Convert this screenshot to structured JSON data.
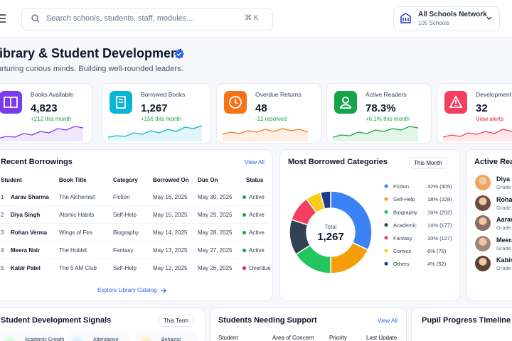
{
  "header": {
    "search_placeholder": "Search schools, students, staff, modules...",
    "search_shortcut": "⌘ K",
    "network": "All Schools Network",
    "network_sub": "105 Schools"
  },
  "page": {
    "title": "Library & Student Development",
    "subtitle": "Nurturing curious minds. Building well-rounded leaders."
  },
  "stats": [
    {
      "label": "Books Available",
      "value": "4,823",
      "change": "+212 this month",
      "color": "#7c3aed",
      "change_color": "#16a34a"
    },
    {
      "label": "Borrowed Books",
      "value": "1,267",
      "change": "+156 this month",
      "color": "#06b6d4",
      "change_color": "#16a34a"
    },
    {
      "label": "Overdue Returns",
      "value": "48",
      "change": "-12 resolved",
      "color": "#f97316",
      "change_color": "#16a34a"
    },
    {
      "label": "Active Readers",
      "value": "78.3%",
      "change": "+6.1% this month",
      "color": "#16a34a",
      "change_color": "#16a34a"
    },
    {
      "label": "Development",
      "value": "32",
      "change": "View alerts",
      "color": "#f43f5e",
      "change_color": "#e11d48"
    }
  ],
  "recent_borrowings": {
    "title": "Recent Borrowings",
    "action": "View All",
    "columns": [
      "Student",
      "Book Title",
      "Category",
      "Borrowed On",
      "Due On",
      "Status"
    ],
    "rows": [
      {
        "cells": [
          "1",
          "Aarav Sharma",
          "The Alchemist",
          "Fiction",
          "May 16, 2025",
          "May 30, 2025",
          "Active"
        ],
        "status_color": "#16a34a"
      },
      {
        "cells": [
          "2",
          "Diya Singh",
          "Atomic Habits",
          "Self-Help",
          "May 15, 2025",
          "May 29, 2025",
          "Active"
        ],
        "status_color": "#16a34a"
      },
      {
        "cells": [
          "3",
          "Rohan Verma",
          "Wings of Fire",
          "Biography",
          "May 14, 2025",
          "May 28, 2025",
          "Active"
        ],
        "status_color": "#16a34a"
      },
      {
        "cells": [
          "4",
          "Meera Nair",
          "The Hobbit",
          "Fantasy",
          "May 13, 2025",
          "May 27, 2025",
          "Active"
        ],
        "status_color": "#16a34a"
      },
      {
        "cells": [
          "5",
          "Kabir Patel",
          "The 5 AM Club",
          "Self-Help",
          "May 12, 2025",
          "May 26, 2025",
          "Overdue"
        ],
        "status_color": "#e11d48"
      }
    ],
    "footer": "Explore Library Catalog"
  },
  "chart_data": {
    "type": "pie",
    "title": "Most Borrowed Categories",
    "filter": "This Month",
    "total_label": "Total",
    "total": "1,267",
    "categories": [
      "Fiction",
      "Self-Help",
      "Biography",
      "Academic",
      "Fantasy",
      "Comics",
      "Others"
    ],
    "values": [
      32,
      18,
      16,
      14,
      10,
      6,
      4
    ],
    "value_labels": [
      "32% (405)",
      "18% (228)",
      "16% (202)",
      "14% (177)",
      "10% (127)",
      "6% (76)",
      "4% (52)"
    ],
    "colors": [
      "#3b82f6",
      "#f59e0b",
      "#22c55e",
      "#334155",
      "#f43f5e",
      "#facc15",
      "#1e3a8a"
    ]
  },
  "active_readers": {
    "title": "Active Readers",
    "people": [
      {
        "name": "Diya Singh",
        "sub": "Grade"
      },
      {
        "name": "Rohan Verma",
        "sub": "Grade"
      },
      {
        "name": "Aarav Sharma",
        "sub": "Grade"
      },
      {
        "name": "Meera Nair",
        "sub": "Grade"
      },
      {
        "name": "Kabir Patel",
        "sub": "Grade"
      }
    ]
  },
  "signals": {
    "title": "Student Development Signals",
    "filter": "This Term",
    "items": [
      "Academic Growth",
      "Attendance",
      "Behavior"
    ]
  },
  "support": {
    "title": "Students Needing Support",
    "action": "View All",
    "columns": [
      "Student",
      "Area of Concern",
      "Priority",
      "Last Update"
    ]
  },
  "timeline": {
    "title": "Pupil Progress Timeline"
  }
}
